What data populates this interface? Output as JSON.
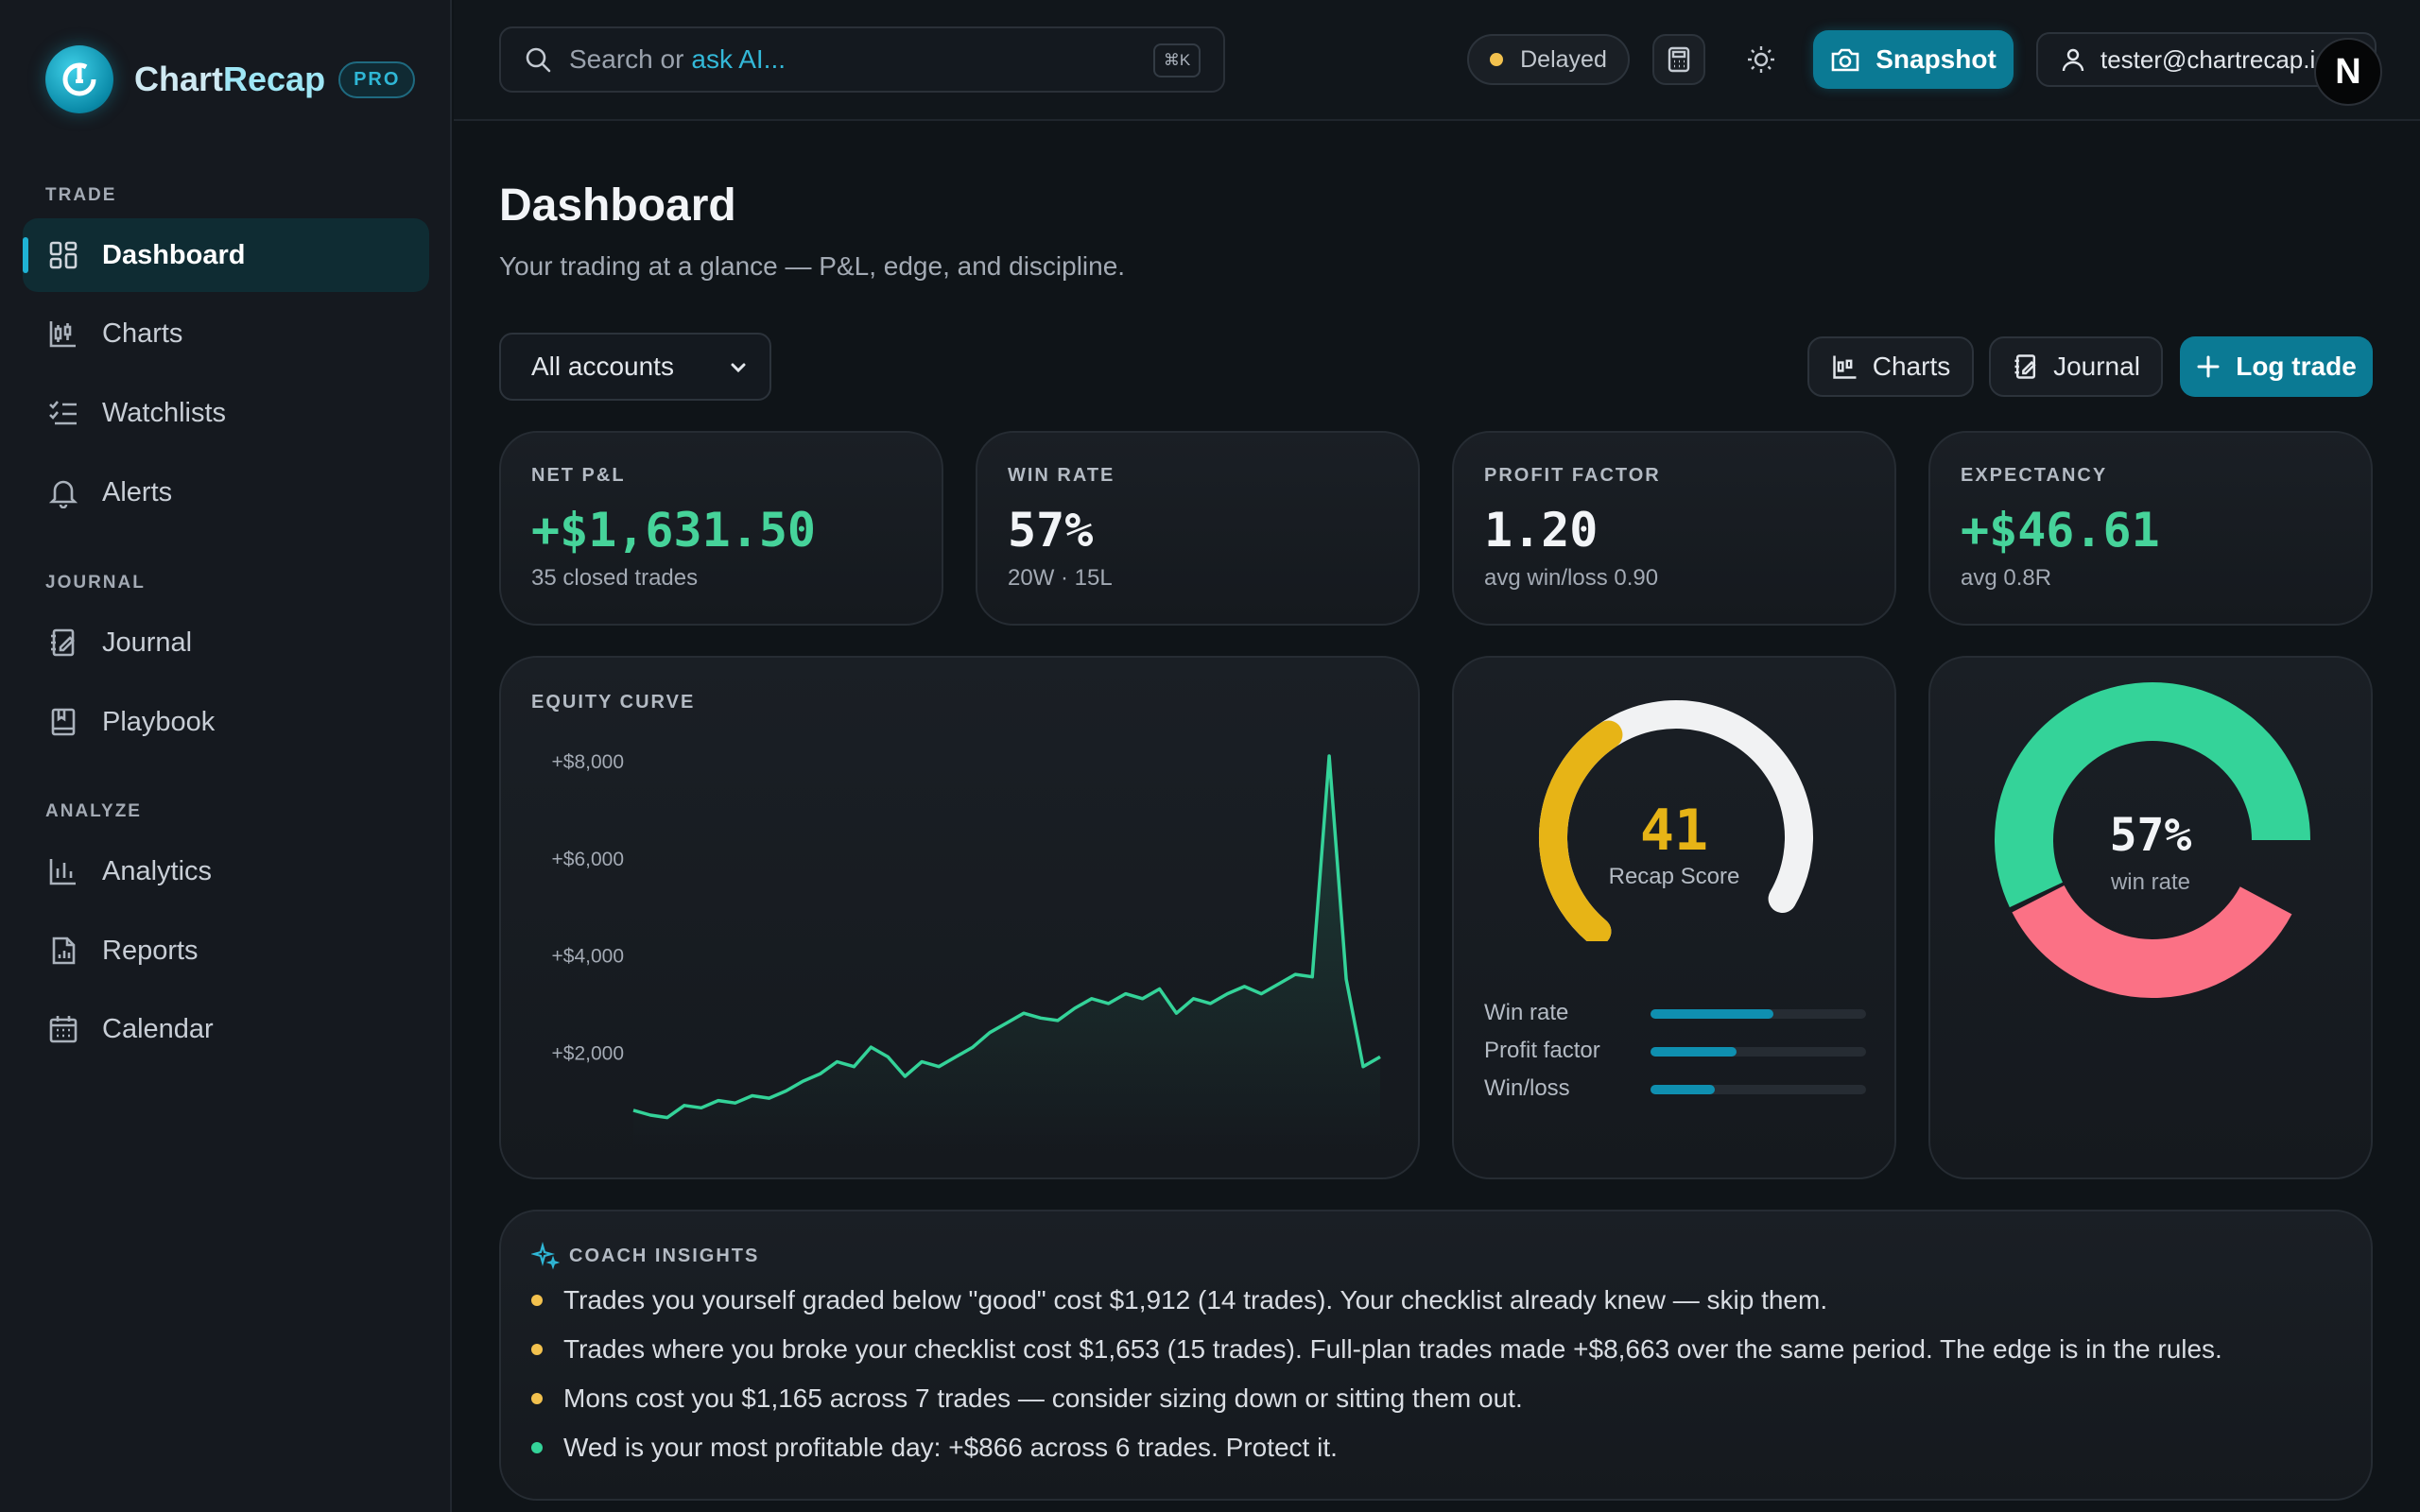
{
  "brand": {
    "name_a": "Chart",
    "name_b": "Recap",
    "badge": "PRO"
  },
  "sidebar": {
    "sections": [
      "TRADE",
      "JOURNAL",
      "ANALYZE"
    ],
    "items": [
      {
        "label": "Dashboard",
        "icon": "dashboard-icon",
        "active": true
      },
      {
        "label": "Charts",
        "icon": "candlestick-icon"
      },
      {
        "label": "Watchlists",
        "icon": "checklist-icon"
      },
      {
        "label": "Alerts",
        "icon": "bell-icon"
      },
      {
        "label": "Journal",
        "icon": "notebook-icon"
      },
      {
        "label": "Playbook",
        "icon": "book-icon"
      },
      {
        "label": "Analytics",
        "icon": "bar-chart-icon"
      },
      {
        "label": "Reports",
        "icon": "report-icon"
      },
      {
        "label": "Calendar",
        "icon": "calendar-icon"
      }
    ]
  },
  "topbar": {
    "search_text": "Search or",
    "search_ask": "ask AI...",
    "search_shortcut": "⌘K",
    "status": "Delayed",
    "snapshot_label": "Snapshot",
    "user_email": "tester@chartrecap.io",
    "avatar_letter": "N"
  },
  "page": {
    "title": "Dashboard",
    "subtitle": "Your trading at a glance — P&L, edge, and discipline.",
    "account_select": "All accounts",
    "btn_charts": "Charts",
    "btn_journal": "Journal",
    "btn_log": "Log trade"
  },
  "stats": [
    {
      "label": "NET P&L",
      "value": "+$1,631.50",
      "sub": "35 closed trades",
      "color": "#46d39a"
    },
    {
      "label": "WIN RATE",
      "value": "57%",
      "sub": "20W · 15L",
      "color": "#f2f4f7"
    },
    {
      "label": "PROFIT FACTOR",
      "value": "1.20",
      "sub": "avg win/loss 0.90",
      "color": "#f2f4f7"
    },
    {
      "label": "EXPECTANCY",
      "value": "+$46.61",
      "sub": "avg 0.8R",
      "color": "#46d39a"
    }
  ],
  "chart_data": {
    "type": "line",
    "title": "EQUITY CURVE",
    "ylim": [
      0,
      8800
    ],
    "y_ticks": [
      "+$2,000",
      "+$4,000",
      "+$6,000",
      "+$8,000"
    ],
    "y_tick_values": [
      2000,
      4000,
      6000,
      8000
    ],
    "values": [
      800,
      700,
      650,
      900,
      850,
      1000,
      950,
      1100,
      1050,
      1200,
      1400,
      1550,
      1800,
      1700,
      2100,
      1900,
      1500,
      1800,
      1700,
      1900,
      2100,
      2400,
      2600,
      2800,
      2700,
      2650,
      2900,
      3100,
      3000,
      3200,
      3100,
      3300,
      2800,
      3100,
      3000,
      3200,
      3350,
      3200,
      3400,
      3600,
      3550,
      8100,
      3500,
      1700,
      1900
    ],
    "color": "#34d399"
  },
  "score": {
    "value": "41",
    "label": "Recap Score",
    "fraction": 0.41,
    "color": "#e7b416",
    "bars": [
      {
        "label": "Win rate",
        "value": 0.57
      },
      {
        "label": "Profit factor",
        "value": 0.4
      },
      {
        "label": "Win/loss",
        "value": 0.3
      }
    ]
  },
  "donut": {
    "pct": "57%",
    "label": "win rate",
    "win": 57,
    "loss": 43,
    "win_color": "#34d399",
    "loss_color": "#fb7185"
  },
  "insights": {
    "title": "COACH INSIGHTS",
    "items": [
      {
        "text": "Trades you yourself graded below \"good\" cost $1,912 (14 trades). Your checklist already knew — skip them.",
        "color": "#f2c14e"
      },
      {
        "text": "Trades where you broke your checklist cost $1,653 (15 trades). Full-plan trades made +$8,663 over the same period. The edge is in the rules.",
        "color": "#f2c14e"
      },
      {
        "text": "Mons cost you $1,165 across 7 trades — consider sizing down or sitting them out.",
        "color": "#f2c14e"
      },
      {
        "text": "Wed is your most profitable day: +$866 across 6 trades. Protect it.",
        "color": "#34d399"
      }
    ]
  }
}
